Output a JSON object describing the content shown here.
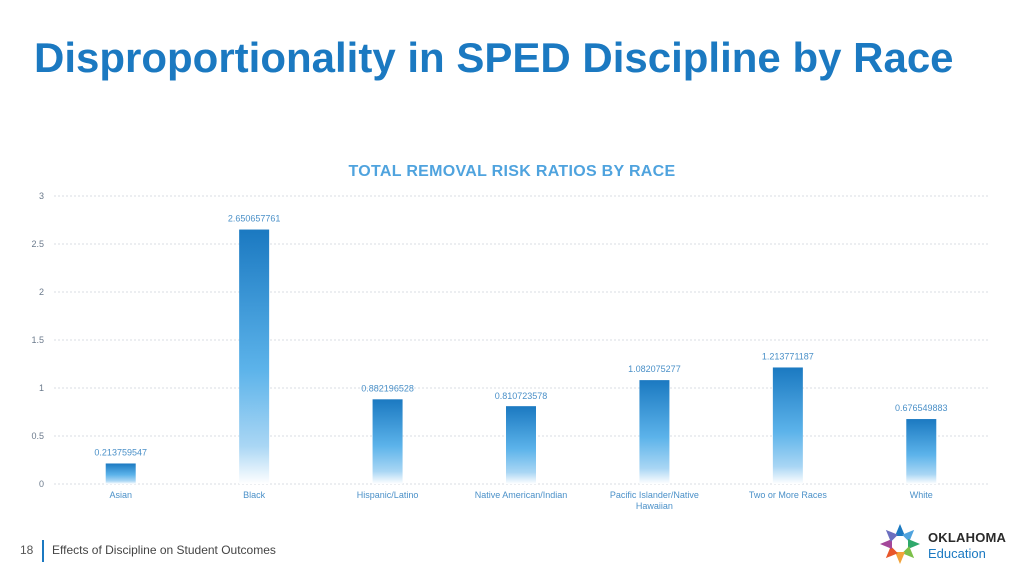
{
  "slide": {
    "title": "Disproportionality in SPED Discipline by Race",
    "page_number": "18",
    "footer_text": "Effects of Discipline on Student Outcomes"
  },
  "logo": {
    "line1": "OKLAHOMA",
    "line2": "Education",
    "icon": "star-logo-icon"
  },
  "colors": {
    "title": "#1b79c1",
    "chart_title": "#4fa3de",
    "bar_top": "#1b79c1",
    "bar_mid": "#5cb3ea",
    "label": "#4a90c8",
    "gridline": "#d9dde3"
  },
  "chart_data": {
    "type": "bar",
    "title": "TOTAL REMOVAL RISK RATIOS BY RACE",
    "xlabel": "",
    "ylabel": "",
    "ylim": [
      0,
      3
    ],
    "yticks": [
      "0",
      "0.5",
      "1",
      "1.5",
      "2",
      "2.5",
      "3"
    ],
    "grid": true,
    "categories": [
      "Asian",
      "Black",
      "Hispanic/Latino",
      "Native American/Indian",
      "Pacific Islander/Native Hawaiian",
      "Two or More Races",
      "White"
    ],
    "values": [
      0.213759547,
      2.650657761,
      0.882196528,
      0.810723578,
      1.082075277,
      1.213771187,
      0.676549883
    ],
    "data_labels": [
      "0.213759547",
      "2.650657761",
      "0.882196528",
      "0.810723578",
      "1.082075277",
      "1.213771187",
      "0.676549883"
    ]
  }
}
